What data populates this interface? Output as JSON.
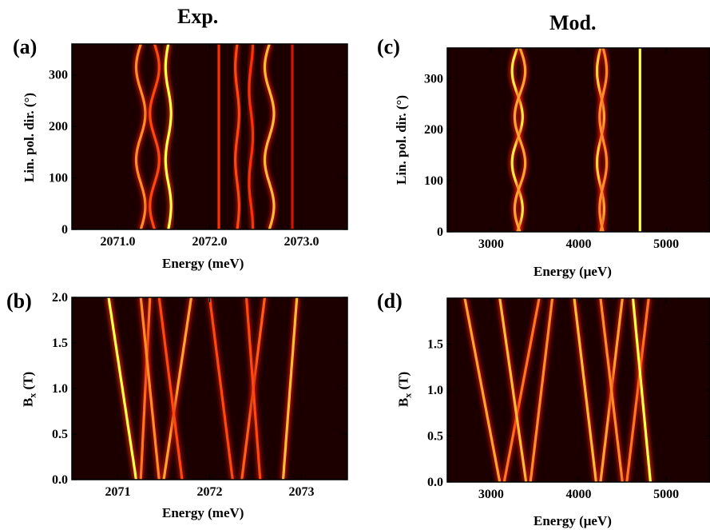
{
  "columns": {
    "left": "Exp.",
    "right": "Mod."
  },
  "chart_data": [
    {
      "panel": "(a)",
      "type": "heatmap",
      "xlabel": "Energy (meV)",
      "ylabel": "Lin. pol. dir. (°)",
      "xlim": [
        2070.5,
        2073.5
      ],
      "ylim": [
        0,
        360
      ],
      "xticks": [
        "2071.0",
        "2072.0",
        "2073.0"
      ],
      "xtick_values": [
        2071.0,
        2072.0,
        2073.0
      ],
      "yticks": [
        "0",
        "100",
        "200",
        "300"
      ],
      "ytick_values": [
        0,
        100,
        200,
        300
      ],
      "colormap": "black-red-yellow",
      "lines": [
        {
          "x": 2071.25,
          "amp": 0.05,
          "phase": 0,
          "intensity": 0.75
        },
        {
          "x": 2071.4,
          "amp": 0.05,
          "phase": 3.14,
          "intensity": 0.6
        },
        {
          "x": 2071.55,
          "amp": 0.03,
          "phase": 0,
          "intensity": 1.0
        },
        {
          "x": 2072.1,
          "amp": 0.0,
          "phase": 0,
          "intensity": 0.55
        },
        {
          "x": 2072.3,
          "amp": 0.02,
          "phase": 0,
          "intensity": 0.6
        },
        {
          "x": 2072.45,
          "amp": 0.02,
          "phase": 1.5,
          "intensity": 0.55
        },
        {
          "x": 2072.65,
          "amp": 0.05,
          "phase": 0,
          "intensity": 0.85
        },
        {
          "x": 2072.9,
          "amp": 0.0,
          "phase": 0,
          "intensity": 0.4
        }
      ]
    },
    {
      "panel": "(b)",
      "type": "heatmap",
      "xlabel": "Energy (meV)",
      "ylabel": "B_x (T)",
      "xlim": [
        2070.5,
        2073.5
      ],
      "ylim": [
        0,
        2.0
      ],
      "xticks": [
        "2071",
        "2072",
        "2073"
      ],
      "xtick_values": [
        2071,
        2072,
        2073
      ],
      "yticks": [
        "0.0",
        "0.5",
        "1.0",
        "1.5",
        "2.0"
      ],
      "ytick_values": [
        0.0,
        0.5,
        1.0,
        1.5,
        2.0
      ],
      "colormap": "black-red-yellow",
      "lines": [
        {
          "x0": 2071.2,
          "x1": 2070.9,
          "intensity": 1.0
        },
        {
          "x0": 2071.25,
          "x1": 2071.35,
          "intensity": 0.7
        },
        {
          "x0": 2071.45,
          "x1": 2071.25,
          "intensity": 0.75
        },
        {
          "x0": 2071.5,
          "x1": 2071.8,
          "intensity": 0.8
        },
        {
          "x0": 2071.7,
          "x1": 2071.45,
          "intensity": 0.6
        },
        {
          "x0": 2072.25,
          "x1": 2072.0,
          "intensity": 0.6
        },
        {
          "x0": 2072.35,
          "x1": 2072.6,
          "intensity": 0.65
        },
        {
          "x0": 2072.55,
          "x1": 2072.4,
          "intensity": 0.6
        },
        {
          "x0": 2072.8,
          "x1": 2072.95,
          "intensity": 0.85
        }
      ]
    },
    {
      "panel": "(c)",
      "type": "heatmap",
      "xlabel": "Energy (μeV)",
      "ylabel": "Lin. pol. dir. (°)",
      "xlim": [
        2500,
        5500
      ],
      "ylim": [
        0,
        360
      ],
      "xticks": [
        "3000",
        "4000",
        "5000"
      ],
      "xtick_values": [
        3000,
        4000,
        5000
      ],
      "yticks": [
        "0",
        "100",
        "200",
        "300"
      ],
      "ytick_values": [
        0,
        100,
        200,
        300
      ],
      "colormap": "black-red-yellow",
      "lines": [
        {
          "x": 3300,
          "amp": 60,
          "phase": 0,
          "intensity": 0.95
        },
        {
          "x": 3330,
          "amp": 60,
          "phase": 3.14,
          "intensity": 0.8
        },
        {
          "x": 4250,
          "amp": 40,
          "phase": 0,
          "intensity": 0.9
        },
        {
          "x": 4280,
          "amp": 40,
          "phase": 3.14,
          "intensity": 0.75
        },
        {
          "x": 4700,
          "amp": 0,
          "phase": 0,
          "intensity": 1.0
        }
      ]
    },
    {
      "panel": "(d)",
      "type": "heatmap",
      "xlabel": "Energy (μeV)",
      "ylabel": "B_x (T)",
      "xlim": [
        2500,
        5500
      ],
      "ylim": [
        0,
        2.0
      ],
      "xticks": [
        "3000",
        "4000",
        "5000"
      ],
      "xtick_values": [
        3000,
        4000,
        5000
      ],
      "yticks": [
        "0.0",
        "0.5",
        "1.0",
        "1.5"
      ],
      "ytick_values": [
        0.0,
        0.5,
        1.0,
        1.5
      ],
      "colormap": "black-red-yellow",
      "lines": [
        {
          "x0": 3100,
          "x1": 2700,
          "intensity": 0.8
        },
        {
          "x0": 3150,
          "x1": 3550,
          "intensity": 0.7
        },
        {
          "x0": 3400,
          "x1": 3100,
          "intensity": 0.85
        },
        {
          "x0": 3450,
          "x1": 3700,
          "intensity": 0.75
        },
        {
          "x0": 4200,
          "x1": 3950,
          "intensity": 0.85
        },
        {
          "x0": 4250,
          "x1": 4500,
          "intensity": 0.8
        },
        {
          "x0": 4500,
          "x1": 4250,
          "intensity": 0.75
        },
        {
          "x0": 4550,
          "x1": 4800,
          "intensity": 0.7
        },
        {
          "x0": 4820,
          "x1": 4620,
          "intensity": 1.0
        }
      ]
    }
  ]
}
